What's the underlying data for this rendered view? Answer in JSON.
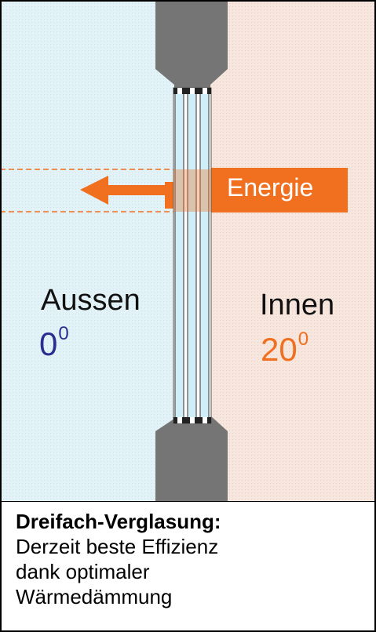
{
  "diagram": {
    "energy_label": "Energie",
    "outside": {
      "label": "Aussen",
      "temperature": "0",
      "unit_sup": "0"
    },
    "inside": {
      "label": "Innen",
      "temperature": "20",
      "unit_sup": "0"
    }
  },
  "caption": {
    "title": "Dreifach-Verglasung:",
    "body": "Derzeit beste Effizienz dank optimaler Wärmedämmung"
  },
  "colors": {
    "outside_bg": "#dff0f5",
    "inside_bg": "#f6e3da",
    "frame": "#757575",
    "glass": "#d6f1f8",
    "energy": "#f07020",
    "outside_temp": "#2a2f8f",
    "inside_temp": "#f07020"
  }
}
